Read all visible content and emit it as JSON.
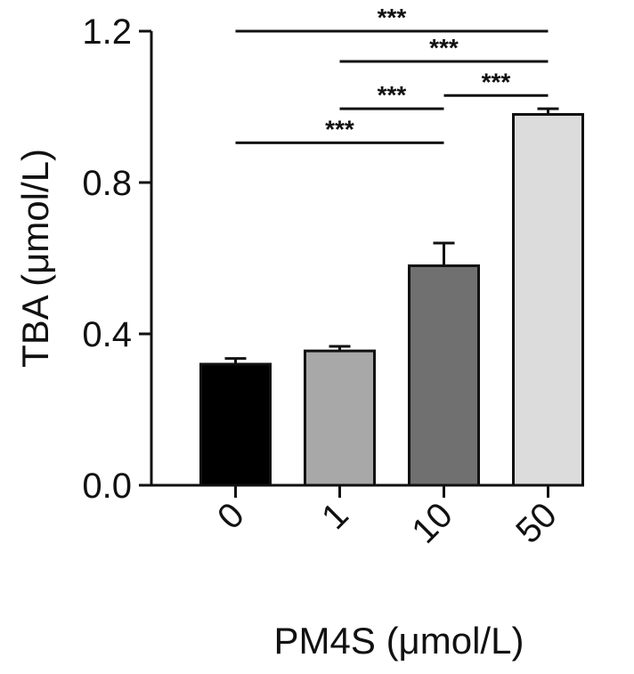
{
  "chart_data": {
    "type": "bar",
    "title": "",
    "xlabel": "PM4S (μmol/L)",
    "ylabel": "TBA (μmol/L)",
    "ylim": [
      0,
      1.2
    ],
    "yticks": [
      "0.0",
      "0.4",
      "0.8",
      "1.2"
    ],
    "categories": [
      "0",
      "1",
      "10",
      "50"
    ],
    "values": [
      0.32,
      0.355,
      0.58,
      0.98
    ],
    "errors": [
      0.015,
      0.012,
      0.06,
      0.015
    ],
    "colors": [
      "#000000",
      "#a8a8a8",
      "#707070",
      "#dcdcdc"
    ],
    "grid": false,
    "significance": [
      {
        "from": 0,
        "to": 3,
        "y": 1.2,
        "label": "***"
      },
      {
        "from": 1,
        "to": 3,
        "y": 1.12,
        "label": "***"
      },
      {
        "from": 1,
        "to": 2,
        "y": 0.995,
        "label": "***"
      },
      {
        "from": 2,
        "to": 3,
        "y": 1.03,
        "label": "***"
      },
      {
        "from": 0,
        "to": 2,
        "y": 0.905,
        "label": "***"
      }
    ]
  }
}
